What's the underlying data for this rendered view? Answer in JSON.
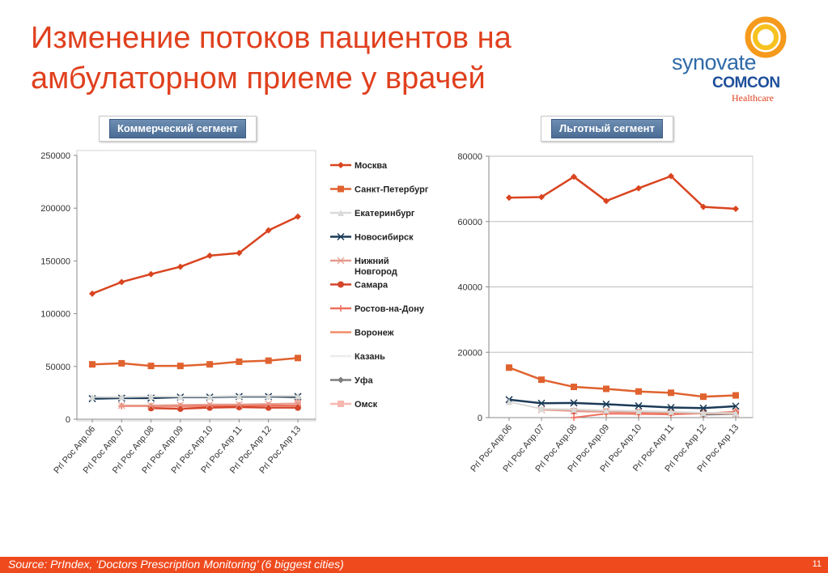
{
  "title": "Изменение потоков пациентов на амбулаторном приеме у врачей",
  "logo": {
    "line1": "synovate",
    "line2": "COMCON",
    "line3": "Healthcare"
  },
  "segments": {
    "left": "Коммерческий сегмент",
    "right": "Льготный сегмент"
  },
  "footer": {
    "source": "Source:  PrIndex, ‘Doctors Prescription Monitoring’ (6 biggest cities)",
    "page": "11"
  },
  "colors": {
    "accent": "#e0401e",
    "footer_bg": "#ef4a1d",
    "button_bg": "#5a7ca3"
  },
  "legend": [
    {
      "name": "Москва",
      "color": "#d9441f",
      "marker": "diamond"
    },
    {
      "name": "Санкт-Петербург",
      "color": "#e0622f",
      "marker": "square"
    },
    {
      "name": "Екатеринбург",
      "color": "#d8dad8",
      "marker": "triangle"
    },
    {
      "name": "Новосибирск",
      "color": "#1b3a57",
      "marker": "x"
    },
    {
      "name": "Нижний Новгород",
      "color": "#e59a8a",
      "marker": "star"
    },
    {
      "name": "Самара",
      "color": "#d4452a",
      "marker": "circle"
    },
    {
      "name": "Ростов-на-Дону",
      "color": "#ef6f5c",
      "marker": "plus"
    },
    {
      "name": "Воронеж",
      "color": "#f28b68",
      "marker": "none"
    },
    {
      "name": "Казань",
      "color": "#ececec",
      "marker": "none"
    },
    {
      "name": "Уфа",
      "color": "#7d7d7d",
      "marker": "diamond"
    },
    {
      "name": "Омск",
      "color": "#f6b7ae",
      "marker": "square"
    }
  ],
  "chart_data": [
    {
      "type": "line",
      "title": "Коммерческий сегмент",
      "categories": [
        "Prl Poc Anp.06",
        "Prl Poc Anp.07",
        "Prl Poc Anp.08",
        "Prl Poc Anp.09",
        "Prl Poc Anp.10",
        "Prl Poc Anp 11",
        "Prl Poc Anp 12",
        "Prl Poc Anp 13"
      ],
      "ylim": [
        0,
        250000
      ],
      "yticks": [
        0,
        50000,
        100000,
        150000,
        200000,
        250000
      ],
      "grid": false,
      "legend_position": "right",
      "series": [
        {
          "name": "Москва",
          "values": [
            119000,
            130000,
            137500,
            144500,
            155000,
            157500,
            179000,
            192000
          ]
        },
        {
          "name": "Санкт-Петербург",
          "values": [
            52000,
            53000,
            50500,
            50500,
            52000,
            54500,
            55500,
            58000
          ]
        },
        {
          "name": "Екатеринбург",
          "values": [
            21000,
            21000,
            21500,
            21500,
            21500,
            22000,
            22000,
            22000
          ]
        },
        {
          "name": "Новосибирск",
          "values": [
            19500,
            20000,
            20000,
            21000,
            21000,
            21500,
            21500,
            21500
          ]
        },
        {
          "name": "Нижний Новгород",
          "values": [
            null,
            13000,
            13000,
            13500,
            14000,
            14000,
            14500,
            15000
          ]
        },
        {
          "name": "Самара",
          "values": [
            null,
            null,
            10500,
            10000,
            11000,
            11500,
            11000,
            11000
          ]
        },
        {
          "name": "Ростов-на-Дону",
          "values": [
            null,
            12500,
            12500,
            12500,
            12500,
            13000,
            13000,
            13000
          ]
        },
        {
          "name": "Воронеж",
          "values": [
            null,
            null,
            null,
            null,
            null,
            null,
            null,
            null
          ]
        },
        {
          "name": "Казань",
          "values": [
            null,
            null,
            null,
            null,
            null,
            null,
            null,
            null
          ]
        },
        {
          "name": "Уфа",
          "values": [
            null,
            null,
            null,
            null,
            null,
            null,
            21500,
            20500
          ]
        },
        {
          "name": "Омск",
          "values": [
            null,
            null,
            null,
            null,
            null,
            null,
            null,
            16000
          ]
        }
      ]
    },
    {
      "type": "line",
      "title": "Льготный сегмент",
      "categories": [
        "Prl Poc Anp.06",
        "Prl Poc Anp.07",
        "Prl Poc Anp.08",
        "Prl Poc Anp.09",
        "Prl Poc Anp.10",
        "Prl Poc Anp 11",
        "Prl Poc Anp 12",
        "Prl Poc Anp 13"
      ],
      "ylim": [
        0,
        80000
      ],
      "yticks": [
        0,
        20000,
        40000,
        60000,
        80000
      ],
      "grid": true,
      "series": [
        {
          "name": "Москва",
          "values": [
            67300,
            67500,
            73700,
            66300,
            70200,
            73900,
            64500,
            63900
          ]
        },
        {
          "name": "Санкт-Петербург",
          "values": [
            15300,
            11600,
            9400,
            8800,
            8000,
            7600,
            6400,
            6800
          ]
        },
        {
          "name": "Екатеринбург",
          "values": [
            4800,
            2700,
            2500,
            2200,
            2000,
            1800,
            1500,
            1400
          ]
        },
        {
          "name": "Новосибирск",
          "values": [
            5500,
            4400,
            4500,
            4100,
            3600,
            3100,
            2900,
            3500
          ]
        },
        {
          "name": "Нижний Новгород",
          "values": [
            null,
            2400,
            2000,
            1900,
            1700,
            1500,
            1300,
            1200
          ]
        },
        {
          "name": "Самара",
          "values": [
            null,
            null,
            2000,
            1900,
            1700,
            1500,
            1400,
            1300
          ]
        },
        {
          "name": "Ростов-на-Дону",
          "values": [
            null,
            null,
            0,
            1200,
            1100,
            1000,
            1300,
            1800
          ]
        },
        {
          "name": "Воронеж",
          "values": [
            null,
            null,
            null,
            null,
            null,
            null,
            null,
            null
          ]
        },
        {
          "name": "Казань",
          "values": [
            null,
            null,
            null,
            null,
            null,
            null,
            null,
            null
          ]
        },
        {
          "name": "Уфа",
          "values": [
            null,
            null,
            null,
            null,
            null,
            null,
            900,
            1100
          ]
        },
        {
          "name": "Омск",
          "values": [
            null,
            null,
            null,
            null,
            null,
            null,
            null,
            2000
          ]
        }
      ]
    }
  ]
}
